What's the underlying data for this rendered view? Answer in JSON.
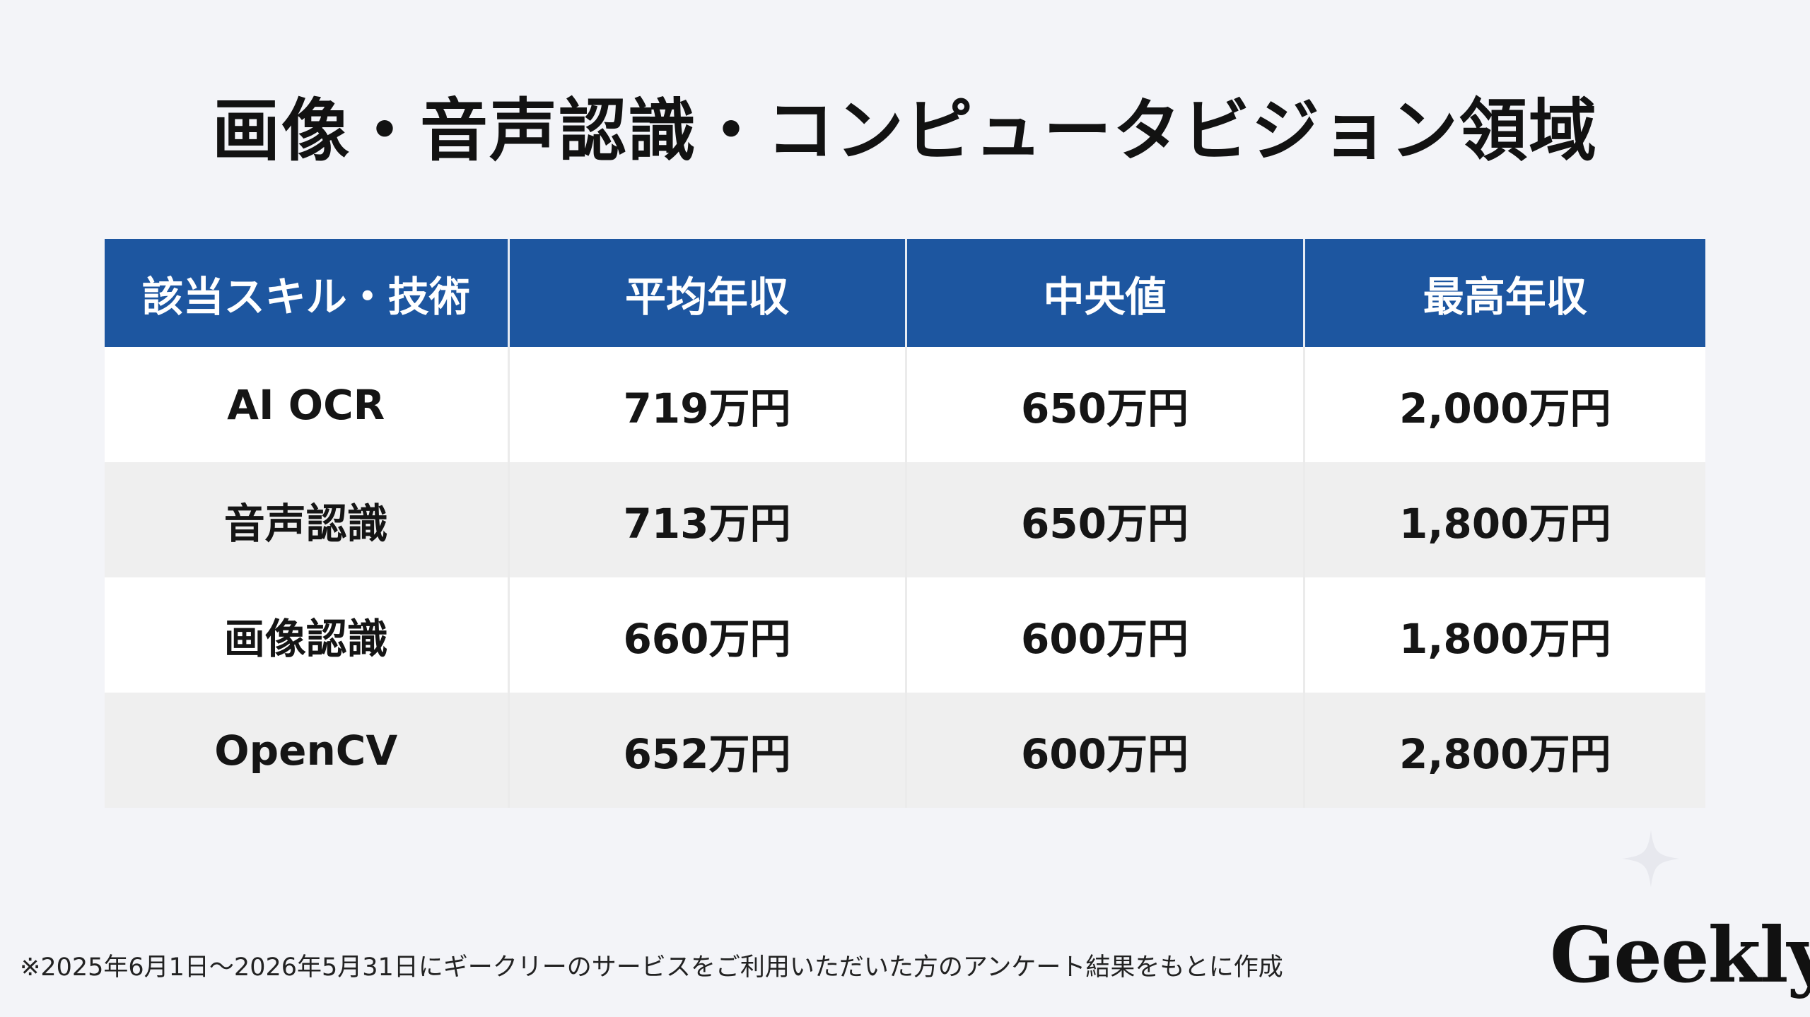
{
  "title": "画像・音声認識・コンピュータビジョン領域",
  "table": {
    "headers": [
      "該当スキル・技術",
      "平均年収",
      "中央値",
      "最高年収"
    ],
    "rows": [
      [
        "AI OCR",
        "719万円",
        "650万円",
        "2,000万円"
      ],
      [
        "音声認識",
        "713万円",
        "650万円",
        "1,800万円"
      ],
      [
        "画像認識",
        "660万円",
        "600万円",
        "1,800万円"
      ],
      [
        "OpenCV",
        "652万円",
        "600万円",
        "2,800万円"
      ]
    ]
  },
  "footnote": "※2025年6月1日〜2026年5月31日にギークリーのサービスをご利用いただいた方のアンケート結果をもとに作成",
  "logo": "Geekly",
  "colors": {
    "header_bg": "#1d56a0",
    "background": "#f3f4f8",
    "row_odd": "#ffffff",
    "row_even": "#efefef"
  }
}
